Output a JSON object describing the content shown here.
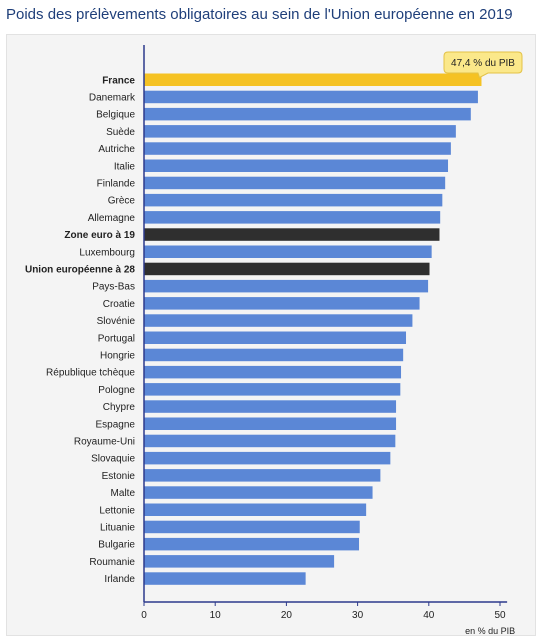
{
  "title": "Poids des prélèvements obligatoires au sein de l'Union européenne en 2019",
  "chart_data": {
    "type": "bar",
    "orientation": "horizontal",
    "categories": [
      "France",
      "Danemark",
      "Belgique",
      "Suède",
      "Autriche",
      "Italie",
      "Finlande",
      "Grèce",
      "Allemagne",
      "Zone euro à 19",
      "Luxembourg",
      "Union européenne à 28",
      "Pays-Bas",
      "Croatie",
      "Slovénie",
      "Portugal",
      "Hongrie",
      "République tchèque",
      "Pologne",
      "Chypre",
      "Espagne",
      "Royaume-Uni",
      "Slovaquie",
      "Estonie",
      "Malte",
      "Lettonie",
      "Lituanie",
      "Bulgarie",
      "Roumanie",
      "Irlande"
    ],
    "values": [
      47.4,
      46.9,
      45.9,
      43.8,
      43.1,
      42.7,
      42.3,
      41.9,
      41.6,
      41.5,
      40.4,
      40.1,
      39.9,
      38.7,
      37.7,
      36.8,
      36.4,
      36.1,
      36.0,
      35.4,
      35.4,
      35.3,
      34.6,
      33.2,
      32.1,
      31.2,
      30.3,
      30.2,
      26.7,
      22.7
    ],
    "bold_categories": [
      "France",
      "Zone euro à 19",
      "Union européenne à 28"
    ],
    "colors": {
      "default": "#5b87d6",
      "highlight": "#f5c223",
      "aggregate": "#2f2f2f",
      "axis": "#2d3a8c",
      "callout_bg": "#fbe88a",
      "callout_border": "#e3c246"
    },
    "highlight_category": "France",
    "aggregate_categories": [
      "Zone euro à 19",
      "Union européenne à 28"
    ],
    "callout": "47,4 % du PIB",
    "xlim": [
      0,
      51
    ],
    "xticks": [
      0,
      10,
      20,
      30,
      40,
      50
    ],
    "xlabel": "en % du PIB",
    "grid": false
  }
}
